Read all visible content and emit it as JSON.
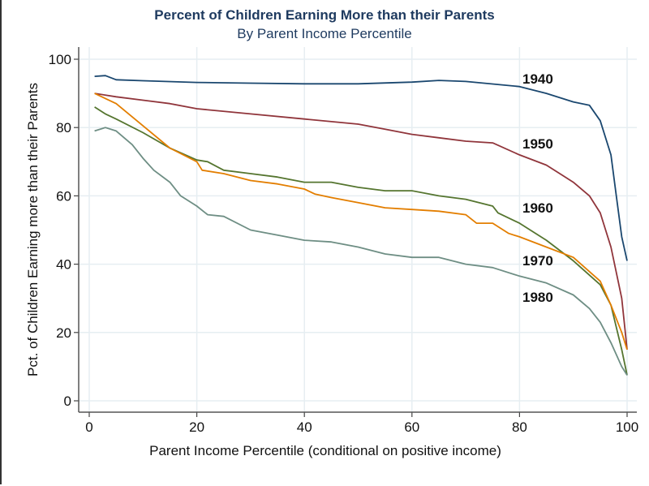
{
  "chart_data": {
    "type": "line",
    "title": "Percent of Children Earning More than their Parents",
    "subtitle": "By Parent Income Percentile",
    "xlabel": "Parent Income Percentile (conditional on positive income)",
    "ylabel": "Pct. of Children Earning more than their Parents",
    "xlim": [
      0,
      100
    ],
    "ylim": [
      0,
      100
    ],
    "xticks": [
      "0",
      "20",
      "40",
      "60",
      "80",
      "100"
    ],
    "yticks": [
      "0",
      "20",
      "40",
      "60",
      "80",
      "100"
    ],
    "grid": true,
    "legend": "none (inline labels at right)",
    "series": [
      {
        "name": "1940",
        "color": "#1a476f",
        "x": [
          1,
          3,
          5,
          10,
          20,
          30,
          40,
          50,
          60,
          65,
          70,
          80,
          85,
          90,
          93,
          95,
          97,
          98,
          99,
          100
        ],
        "y": [
          95,
          95.2,
          94,
          93.7,
          93.2,
          93,
          92.8,
          92.8,
          93.3,
          93.8,
          93.5,
          92,
          90,
          87.5,
          86.5,
          82,
          72,
          60,
          48,
          41
        ]
      },
      {
        "name": "1950",
        "color": "#90353b",
        "x": [
          1,
          5,
          10,
          15,
          20,
          30,
          40,
          50,
          55,
          60,
          65,
          70,
          75,
          80,
          85,
          88,
          90,
          93,
          95,
          97,
          99,
          100
        ],
        "y": [
          90,
          89,
          88,
          87,
          85.5,
          84,
          82.5,
          81,
          79.5,
          78,
          77,
          76,
          75.5,
          72,
          69,
          66,
          64,
          60,
          55,
          45,
          30,
          15
        ]
      },
      {
        "name": "1960",
        "color": "#55752f",
        "x": [
          1,
          3,
          5,
          10,
          15,
          20,
          22,
          25,
          30,
          35,
          40,
          45,
          50,
          55,
          60,
          65,
          70,
          75,
          76,
          80,
          85,
          90,
          95,
          97,
          99,
          100
        ],
        "y": [
          86,
          84,
          82.5,
          78.5,
          74,
          70.5,
          70,
          67.5,
          66.5,
          65.5,
          64,
          64,
          62.5,
          61.5,
          61.5,
          60,
          59,
          57,
          55,
          52,
          47,
          41,
          34,
          28,
          15,
          7.5
        ]
      },
      {
        "name": "1970",
        "color": "#e37e00",
        "x": [
          1,
          3,
          5,
          10,
          15,
          20,
          21,
          25,
          30,
          35,
          40,
          42,
          45,
          50,
          55,
          60,
          65,
          70,
          72,
          75,
          78,
          80,
          85,
          90,
          95,
          97,
          99,
          100
        ],
        "y": [
          90,
          88.5,
          87,
          80.5,
          74,
          70,
          67.5,
          66.5,
          64.5,
          63.5,
          62,
          60.5,
          59.5,
          58,
          56.5,
          56,
          55.5,
          54.5,
          52,
          52,
          49,
          48,
          45,
          42,
          35,
          28,
          20,
          15
        ]
      },
      {
        "name": "1980",
        "color": "#6e8e84",
        "x": [
          1,
          3,
          5,
          8,
          10,
          12,
          15,
          17,
          20,
          22,
          25,
          30,
          35,
          40,
          45,
          50,
          55,
          60,
          65,
          70,
          75,
          80,
          85,
          90,
          93,
          95,
          97,
          99,
          100
        ],
        "y": [
          79,
          80,
          79,
          75,
          71,
          67.5,
          64,
          60,
          57,
          54.5,
          54,
          50,
          48.5,
          47,
          46.5,
          45,
          43,
          42,
          42,
          40,
          39,
          36.5,
          34.5,
          31,
          27,
          23,
          17,
          10,
          7.5
        ]
      }
    ]
  }
}
